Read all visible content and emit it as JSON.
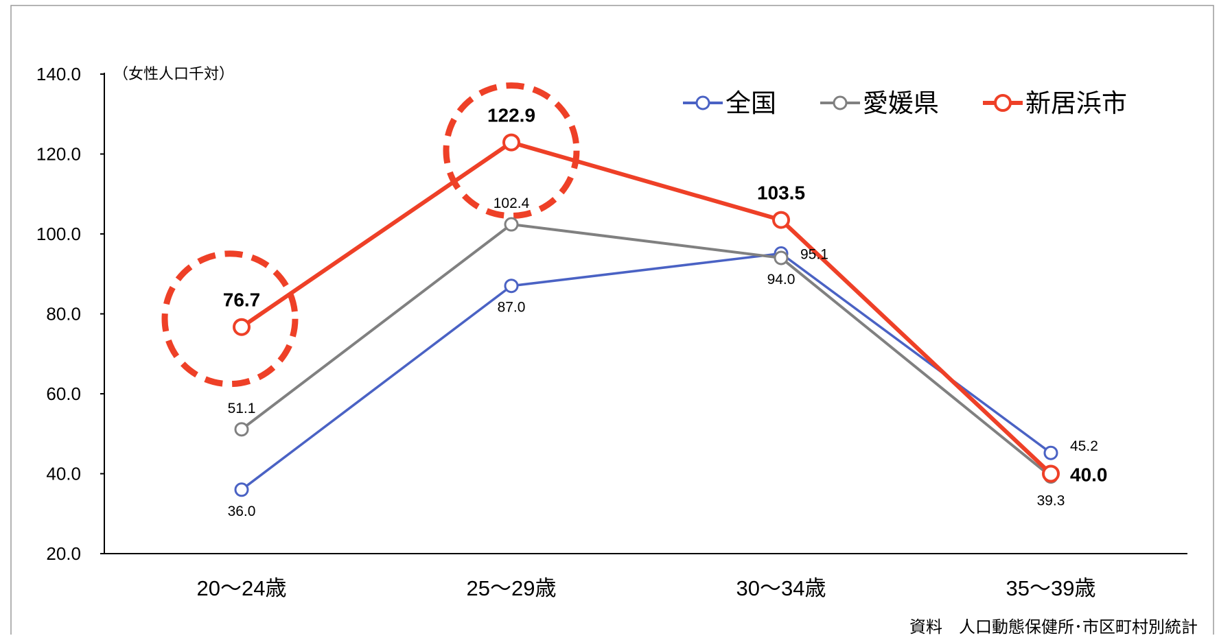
{
  "chart_data": {
    "type": "line",
    "title": "",
    "xlabel": "",
    "ylabel": "（女性人口千対）",
    "categories": [
      "20～24歳",
      "25～29歳",
      "30～34歳",
      "35～39歳"
    ],
    "ylim": [
      20,
      140
    ],
    "yticks": [
      "20.0",
      "40.0",
      "60.0",
      "80.0",
      "100.0",
      "120.0",
      "140.0"
    ],
    "legend_position": "top-right",
    "grid": false,
    "series": [
      {
        "name": "全国",
        "color": "#4a62c4",
        "values": [
          36.0,
          87.0,
          95.1,
          45.2
        ],
        "labels": [
          "36.0",
          "87.0",
          "95.1",
          "45.2"
        ]
      },
      {
        "name": "愛媛県",
        "color": "#808080",
        "values": [
          51.1,
          102.4,
          94.0,
          39.3
        ],
        "labels": [
          "51.1",
          "102.4",
          "94.0",
          "39.3"
        ]
      },
      {
        "name": "新居浜市",
        "color": "#ee4027",
        "values": [
          76.7,
          122.9,
          103.5,
          40.0
        ],
        "labels": [
          "76.7",
          "122.9",
          "103.5",
          "40.0"
        ]
      }
    ],
    "highlight_color": "#ee4027",
    "source": "資料　人口動態保健所･市区町村別統計"
  }
}
